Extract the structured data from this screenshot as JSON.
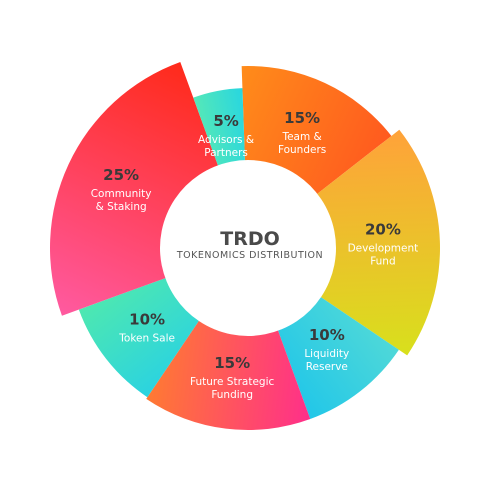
{
  "chart_data": {
    "type": "pie",
    "title": "TRDO",
    "subtitle": "TOKENOMICS DISTRIBUTION",
    "slices": [
      {
        "label_lines": [
          "Team &",
          "Founders"
        ],
        "percent_text": "15%",
        "value": 15,
        "color_start": "#ff8c1a",
        "color_end": "#ff5a1f",
        "text_color": "#ffffff",
        "pct_color": "#3a3a3a"
      },
      {
        "label_lines": [
          "Development",
          "Fund"
        ],
        "percent_text": "20%",
        "value": 20,
        "color_start": "#ffa23a",
        "color_end": "#d8e01c",
        "text_color": "#ffffff",
        "pct_color": "#3a3a3a"
      },
      {
        "label_lines": [
          "Liquidity",
          "Reserve"
        ],
        "percent_text": "10%",
        "value": 10,
        "color_start": "#4fd8d8",
        "color_end": "#22c7e8",
        "text_color": "#ffffff",
        "pct_color": "#3a3a3a"
      },
      {
        "label_lines": [
          "Future Strategic",
          "Funding"
        ],
        "percent_text": "15%",
        "value": 15,
        "color_start": "#ff2f8a",
        "color_end": "#ff7a32",
        "text_color": "#ffffff",
        "pct_color": "#3a3a3a"
      },
      {
        "label_lines": [
          "Token Sale"
        ],
        "percent_text": "10%",
        "value": 10,
        "color_start": "#2bd3e0",
        "color_end": "#4ee8b0",
        "text_color": "#ffffff",
        "pct_color": "#3a3a3a"
      },
      {
        "label_lines": [
          "Community",
          "& Staking"
        ],
        "percent_text": "25%",
        "value": 25,
        "color_start": "#ff5aa0",
        "color_end": "#ff2a1a",
        "text_color": "#ffffff",
        "pct_color": "#3a3a3a"
      },
      {
        "label_lines": [
          "Advisors &",
          "Partners"
        ],
        "percent_text": "5%",
        "value": 5,
        "color_start": "#55e8b8",
        "color_end": "#28d6e0",
        "text_color": "#ffffff",
        "pct_color": "#3a3a3a"
      }
    ]
  }
}
